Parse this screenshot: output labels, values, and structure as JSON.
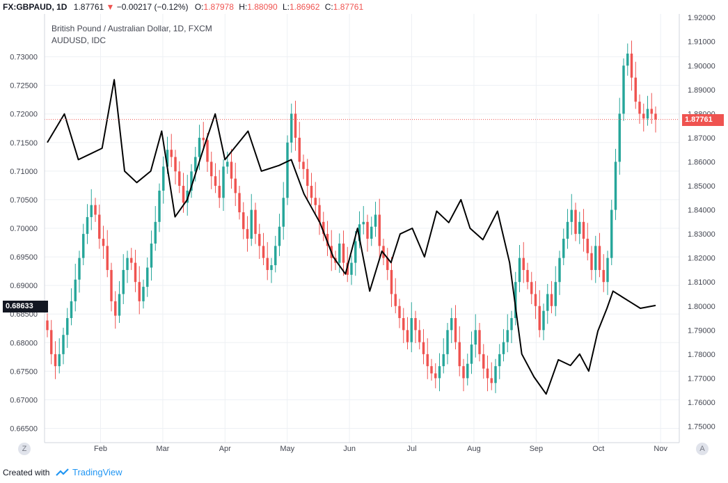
{
  "header": {
    "symbol": "FX:GBPAUD, 1D",
    "last": "1.87761",
    "change": "−0.00217 (−0.12%)",
    "o_label": "O:",
    "o_value": "1.87978",
    "h_label": "H:",
    "h_value": "1.88090",
    "l_label": "L:",
    "l_value": "1.86962",
    "c_label": "C:",
    "c_value": "1.87761"
  },
  "legend": {
    "main": "British Pound / Australian Dollar, 1D, FXCM",
    "compare": "AUDUSD, IDC"
  },
  "badges": {
    "right_price": "1.87761",
    "left_price": "0.68633"
  },
  "buttons": {
    "zoom": "Z",
    "auto": "A"
  },
  "footer": {
    "created_with": "Created with",
    "brand": "TradingView"
  },
  "colors": {
    "up": "#26a69a",
    "down": "#ef5350",
    "overlay": "#000000",
    "grid": "#edf0f4",
    "axis_text": "#434651",
    "price_line": "#ef5350"
  },
  "chart_data": {
    "type": "candlestick",
    "title": "British Pound / Australian Dollar, 1D, FXCM",
    "x_ticks": [
      "Feb",
      "Mar",
      "Apr",
      "May",
      "Jun",
      "Jul",
      "Aug",
      "Sep",
      "Oct",
      "Nov"
    ],
    "left_axis": {
      "series": "AUDUSD, IDC",
      "range": [
        0.6625,
        0.7375
      ],
      "ticks": [
        "0.73000",
        "0.72500",
        "0.72000",
        "0.71500",
        "0.71000",
        "0.70500",
        "0.70000",
        "0.69500",
        "0.69000",
        "0.68500",
        "0.68000",
        "0.67500",
        "0.67000",
        "0.66500"
      ]
    },
    "right_axis": {
      "series": "GBPAUD",
      "range": [
        1.7432,
        1.9215
      ],
      "ticks": [
        "1.92000",
        "1.91000",
        "1.90000",
        "1.89000",
        "1.88000",
        "1.87000",
        "1.86000",
        "1.85000",
        "1.84000",
        "1.83000",
        "1.82000",
        "1.81000",
        "1.80000",
        "1.79000",
        "1.78000",
        "1.77000",
        "1.76000",
        "1.75000"
      ]
    },
    "gbpaud_closes": [
      1.79,
      1.78,
      1.775,
      1.78,
      1.788,
      1.795,
      1.802,
      1.811,
      1.82,
      1.83,
      1.837,
      1.842,
      1.838,
      1.828,
      1.825,
      1.815,
      1.802,
      1.796,
      1.805,
      1.815,
      1.82,
      1.818,
      1.81,
      1.802,
      1.808,
      1.816,
      1.826,
      1.835,
      1.848,
      1.858,
      1.865,
      1.862,
      1.856,
      1.85,
      1.843,
      1.848,
      1.856,
      1.862,
      1.87,
      1.869,
      1.86,
      1.854,
      1.85,
      1.845,
      1.858,
      1.86,
      1.853,
      1.847,
      1.839,
      1.832,
      1.828,
      1.84,
      1.83,
      1.825,
      1.82,
      1.815,
      1.817,
      1.825,
      1.833,
      1.845,
      1.868,
      1.88,
      1.87,
      1.86,
      1.857,
      1.85,
      1.845,
      1.842,
      1.835,
      1.83,
      1.825,
      1.82,
      1.818,
      1.826,
      1.818,
      1.813,
      1.818,
      1.827,
      1.834,
      1.835,
      1.828,
      1.833,
      1.838,
      1.825,
      1.82,
      1.815,
      1.805,
      1.8,
      1.795,
      1.79,
      1.785,
      1.795,
      1.79,
      1.785,
      1.78,
      1.775,
      1.772,
      1.77,
      1.775,
      1.78,
      1.79,
      1.795,
      1.785,
      1.775,
      1.77,
      1.776,
      1.784,
      1.79,
      1.78,
      1.774,
      1.77,
      1.768,
      1.775,
      1.78,
      1.785,
      1.79,
      1.795,
      1.81,
      1.82,
      1.815,
      1.81,
      1.805,
      1.8,
      1.79,
      1.798,
      1.805,
      1.8,
      1.81,
      1.82,
      1.828,
      1.835,
      1.84,
      1.83,
      1.835,
      1.828,
      1.822,
      1.815,
      1.825,
      1.815,
      1.81,
      1.82,
      1.84,
      1.86,
      1.88,
      1.9,
      1.905,
      1.895,
      1.885,
      1.88,
      1.878,
      1.882,
      1.88,
      1.8776
    ],
    "audusd_points": [
      [
        0.0,
        0.715
      ],
      [
        0.028,
        0.72
      ],
      [
        0.051,
        0.712
      ],
      [
        0.09,
        0.714
      ],
      [
        0.11,
        0.726
      ],
      [
        0.127,
        0.71
      ],
      [
        0.147,
        0.708
      ],
      [
        0.17,
        0.71
      ],
      [
        0.188,
        0.717
      ],
      [
        0.21,
        0.702
      ],
      [
        0.23,
        0.705
      ],
      [
        0.26,
        0.715
      ],
      [
        0.276,
        0.72
      ],
      [
        0.292,
        0.712
      ],
      [
        0.33,
        0.717
      ],
      [
        0.352,
        0.71
      ],
      [
        0.381,
        0.711
      ],
      [
        0.401,
        0.712
      ],
      [
        0.422,
        0.706
      ],
      [
        0.448,
        0.701
      ],
      [
        0.47,
        0.695
      ],
      [
        0.49,
        0.692
      ],
      [
        0.51,
        0.7
      ],
      [
        0.53,
        0.689
      ],
      [
        0.55,
        0.696
      ],
      [
        0.565,
        0.694
      ],
      [
        0.58,
        0.699
      ],
      [
        0.6,
        0.7
      ],
      [
        0.62,
        0.695
      ],
      [
        0.64,
        0.703
      ],
      [
        0.66,
        0.701
      ],
      [
        0.68,
        0.705
      ],
      [
        0.695,
        0.7
      ],
      [
        0.716,
        0.698
      ],
      [
        0.74,
        0.703
      ],
      [
        0.76,
        0.694
      ],
      [
        0.78,
        0.678
      ],
      [
        0.8,
        0.674
      ],
      [
        0.82,
        0.671
      ],
      [
        0.84,
        0.677
      ],
      [
        0.86,
        0.676
      ],
      [
        0.875,
        0.678
      ],
      [
        0.89,
        0.675
      ],
      [
        0.905,
        0.682
      ],
      [
        0.92,
        0.686
      ],
      [
        0.93,
        0.689
      ],
      [
        0.945,
        0.688
      ],
      [
        0.96,
        0.687
      ],
      [
        0.975,
        0.686
      ],
      [
        1.0,
        0.6865
      ]
    ]
  }
}
